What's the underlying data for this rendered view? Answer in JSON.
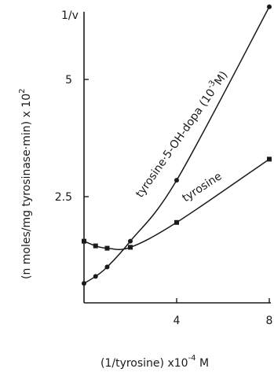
{
  "chart_data": {
    "type": "line",
    "ylabel_prefix": "(n moles/mg tyrosinase·min) x 10",
    "ylabel_exp": "2",
    "ylabel_top": "1/v",
    "xlabel_prefix": "(1/tyrosine) x10",
    "xlabel_exp": "-4",
    "xlabel_suffix": " M",
    "x_ticks": [
      "4",
      "8"
    ],
    "y_ticks": [
      "2.5",
      "5"
    ],
    "xlim": [
      0,
      8
    ],
    "ylim": [
      0,
      6.8
    ],
    "series": [
      {
        "name_prefix": "tyrosine·5-OH-dopa (10",
        "name_exp": "-3",
        "name_suffix": "M)",
        "marker": "circle",
        "x": [
          0.0,
          0.5,
          1.0,
          2.0,
          4.0,
          8.0
        ],
        "y": [
          0.65,
          0.8,
          1.0,
          1.55,
          2.85,
          6.55
        ]
      },
      {
        "name": "tyrosine",
        "marker": "square",
        "x": [
          0.0,
          0.5,
          1.0,
          2.0,
          4.0,
          8.0
        ],
        "y": [
          1.55,
          1.45,
          1.4,
          1.42,
          1.95,
          3.3
        ]
      }
    ]
  },
  "colors": {
    "ink": "#1a1a1a",
    "background": "#ffffff"
  }
}
